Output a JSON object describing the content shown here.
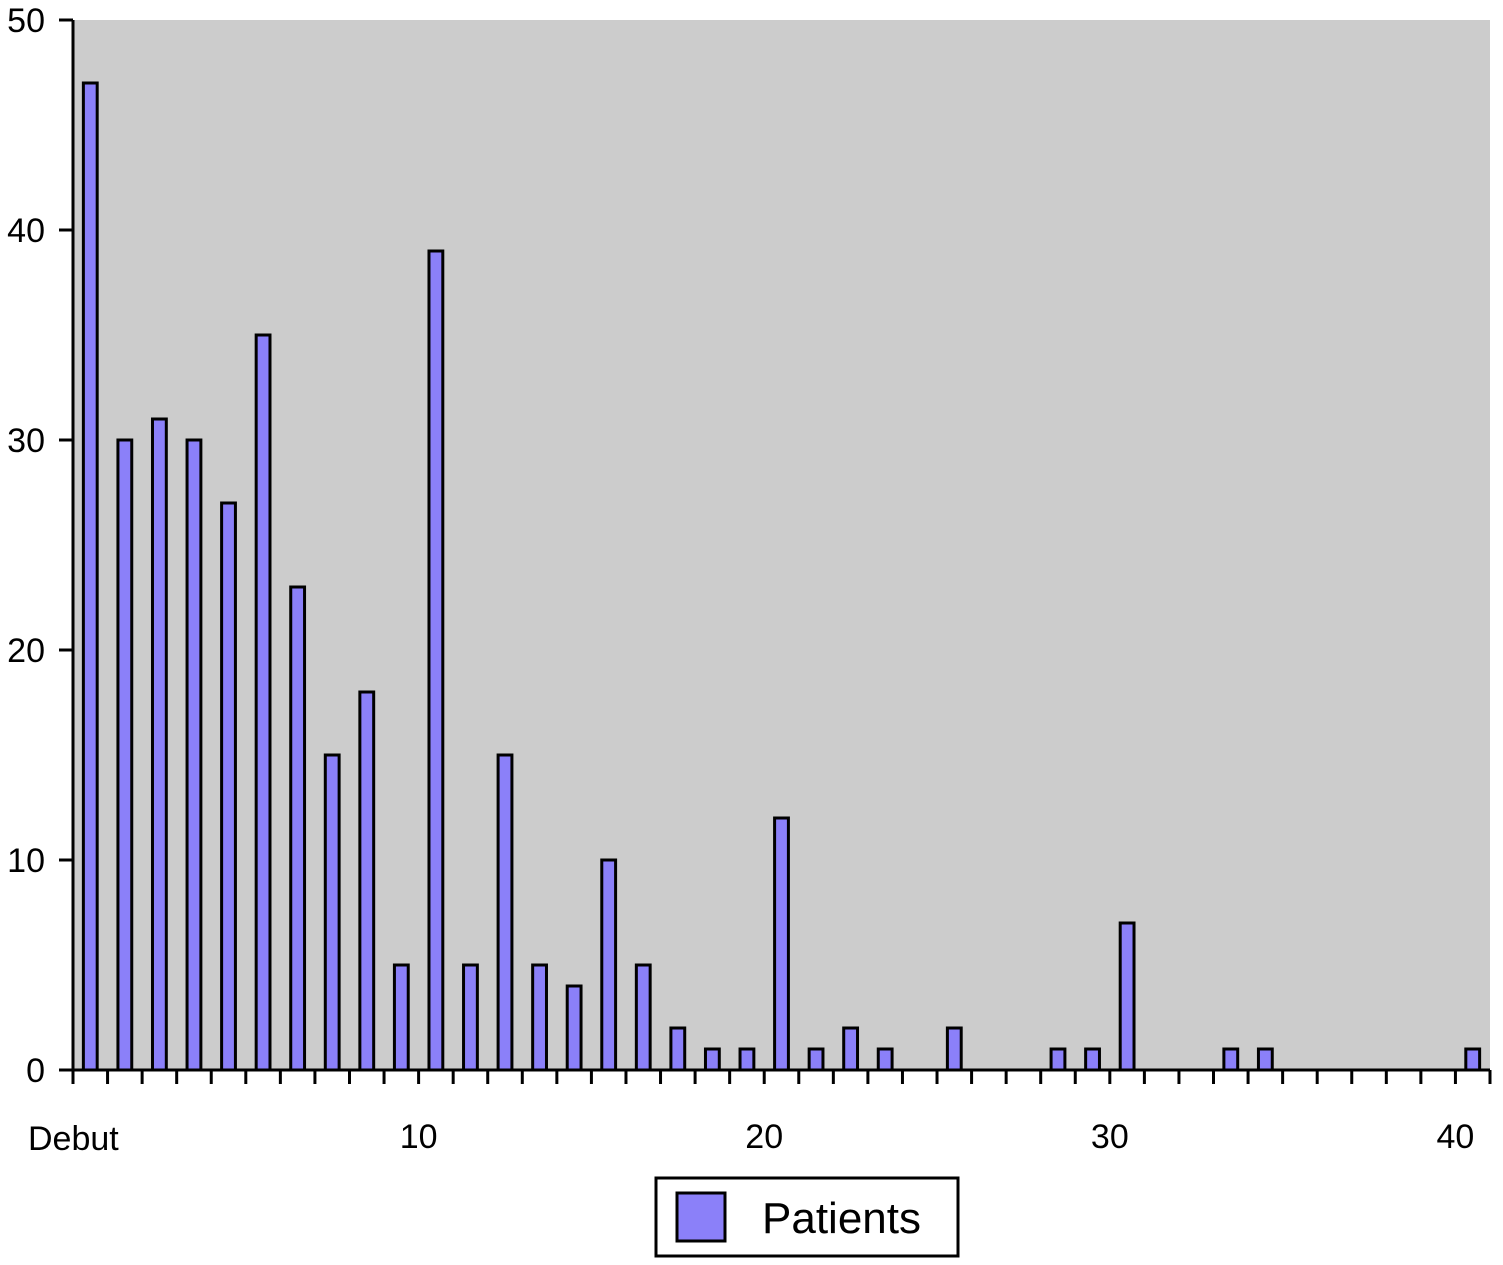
{
  "chart_data": {
    "type": "bar",
    "title": "",
    "xlabel": "",
    "ylabel": "",
    "x_first_label": "Debut",
    "x_tick_labels": [
      "10",
      "20",
      "30",
      "40"
    ],
    "y_tick_labels": [
      "0",
      "10",
      "20",
      "30",
      "40",
      "50"
    ],
    "xlim": [
      0,
      41
    ],
    "ylim": [
      0,
      50
    ],
    "grid": false,
    "plot_background": "#cccccc",
    "bar_color": "#8b80f9",
    "legend": {
      "position": "bottom-center"
    },
    "series": [
      {
        "name": "Patients",
        "color": "#8b80f9",
        "points": [
          {
            "x": 0,
            "y": 47
          },
          {
            "x": 1,
            "y": 30
          },
          {
            "x": 2,
            "y": 31
          },
          {
            "x": 3,
            "y": 30
          },
          {
            "x": 4,
            "y": 27
          },
          {
            "x": 5,
            "y": 35
          },
          {
            "x": 6,
            "y": 23
          },
          {
            "x": 7,
            "y": 15
          },
          {
            "x": 8,
            "y": 18
          },
          {
            "x": 9,
            "y": 5
          },
          {
            "x": 10,
            "y": 39
          },
          {
            "x": 11,
            "y": 5
          },
          {
            "x": 12,
            "y": 15
          },
          {
            "x": 13,
            "y": 5
          },
          {
            "x": 14,
            "y": 4
          },
          {
            "x": 15,
            "y": 10
          },
          {
            "x": 16,
            "y": 5
          },
          {
            "x": 17,
            "y": 2
          },
          {
            "x": 18,
            "y": 1
          },
          {
            "x": 19,
            "y": 1
          },
          {
            "x": 20,
            "y": 12
          },
          {
            "x": 21,
            "y": 1
          },
          {
            "x": 22,
            "y": 2
          },
          {
            "x": 23,
            "y": 1
          },
          {
            "x": 25,
            "y": 2
          },
          {
            "x": 28,
            "y": 1
          },
          {
            "x": 29,
            "y": 1
          },
          {
            "x": 30,
            "y": 7
          },
          {
            "x": 33,
            "y": 1
          },
          {
            "x": 34,
            "y": 1
          },
          {
            "x": 40,
            "y": 1
          }
        ]
      }
    ]
  }
}
